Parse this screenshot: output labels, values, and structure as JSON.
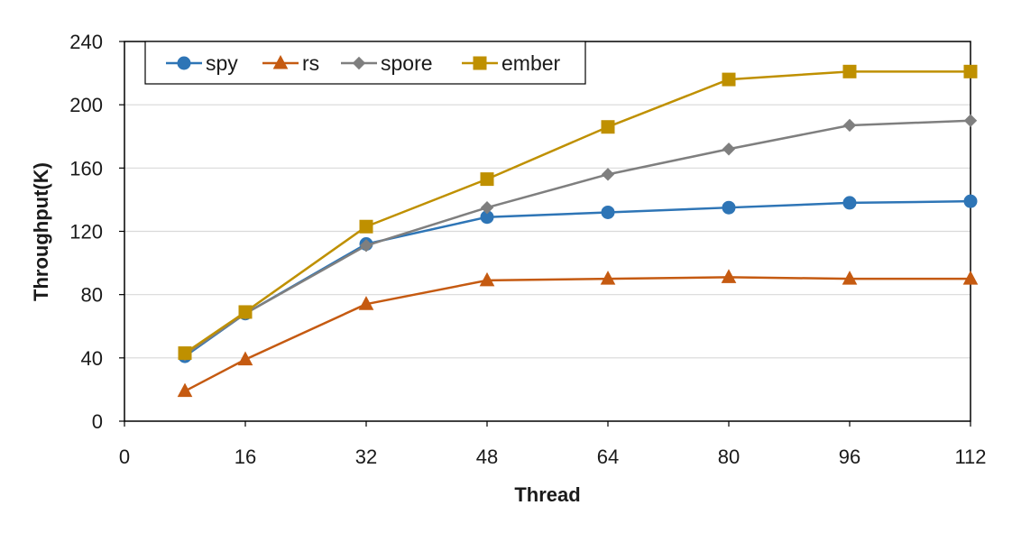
{
  "chart_data": {
    "type": "line",
    "xlabel": "Thread",
    "ylabel": "Throughput(K)",
    "xlim": [
      0,
      112
    ],
    "ylim": [
      0,
      240
    ],
    "xticks": [
      0,
      16,
      32,
      48,
      64,
      80,
      96,
      112
    ],
    "yticks": [
      0,
      40,
      80,
      120,
      160,
      200,
      240
    ],
    "grid": "horizontal",
    "legend_position": "top-left",
    "x": [
      8,
      16,
      32,
      48,
      64,
      80,
      96,
      112
    ],
    "series": [
      {
        "name": "spy",
        "marker": "circle",
        "color": "#2e75b6",
        "values": [
          41,
          68,
          112,
          129,
          132,
          135,
          138,
          139
        ]
      },
      {
        "name": "rs",
        "marker": "triangle",
        "color": "#c55a11",
        "values": [
          19,
          39,
          74,
          89,
          90,
          91,
          90,
          90
        ]
      },
      {
        "name": "spore",
        "marker": "diamond",
        "color": "#7f7f7f",
        "values": [
          42,
          68,
          111,
          135,
          156,
          172,
          187,
          190
        ]
      },
      {
        "name": "ember",
        "marker": "square",
        "color": "#bf9000",
        "values": [
          43,
          69,
          123,
          153,
          186,
          216,
          221,
          221
        ]
      }
    ]
  }
}
